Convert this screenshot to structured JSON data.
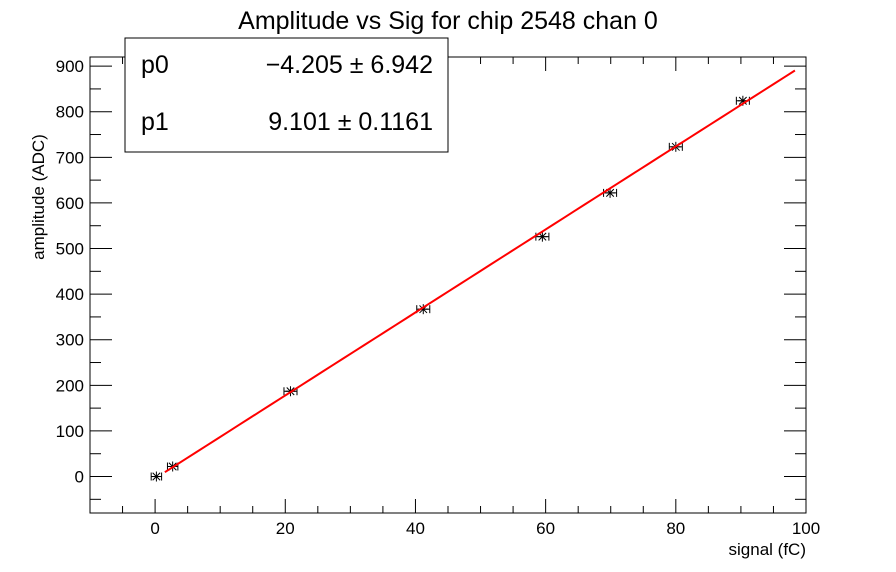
{
  "chart_data": {
    "type": "scatter",
    "title": "Amplitude vs Sig for chip 2548 chan 0",
    "xlabel": "signal (fC)",
    "ylabel": "amplitude (ADC)",
    "xlim": [
      -10,
      100
    ],
    "ylim": [
      -80,
      920
    ],
    "x_ticks": [
      0,
      20,
      40,
      60,
      80,
      100
    ],
    "y_ticks": [
      0,
      100,
      200,
      300,
      400,
      500,
      600,
      700,
      800,
      900
    ],
    "x_tick_labels": [
      "0",
      "20",
      "40",
      "60",
      "80",
      "100"
    ],
    "y_tick_labels": [
      "0",
      "100",
      "200",
      "300",
      "400",
      "500",
      "600",
      "700",
      "800",
      "900"
    ],
    "points": {
      "x": [
        0.2,
        2.7,
        20.8,
        41.2,
        59.5,
        69.9,
        80.0,
        90.3
      ],
      "y": [
        0,
        22,
        187,
        367,
        526,
        622,
        723,
        824
      ],
      "x_err": [
        0.8,
        0.8,
        1.0,
        1.0,
        1.0,
        1.0,
        1.0,
        1.0
      ],
      "y_err": [
        3,
        3,
        3,
        3,
        3,
        3,
        3,
        3
      ],
      "marker_color": "#000000"
    },
    "fit": {
      "function": "p0 + p1*x",
      "x_range": [
        1.5,
        98.3
      ],
      "p0": -4.205,
      "p1": 9.101,
      "line_color": "#ff0000"
    },
    "stats_box": {
      "position": "top-left",
      "rows": [
        {
          "name": "p0",
          "value": "−4.205 ± 6.942"
        },
        {
          "name": "p1",
          "value": "9.101 ± 0.1161"
        }
      ]
    },
    "grid": false,
    "legend": "none"
  }
}
